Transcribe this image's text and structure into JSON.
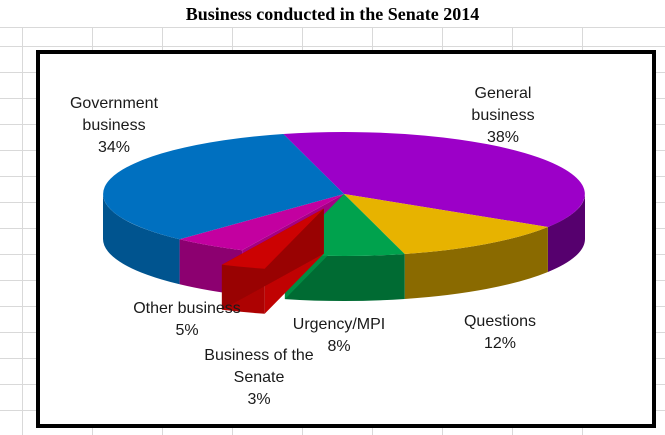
{
  "title": "Business conducted in the Senate 2014",
  "sheet": {
    "grid_color": "#D9D9D9",
    "background": "#FFFFFF",
    "frame_border_color": "#000000"
  },
  "chart_data": {
    "type": "pie",
    "style": "3d-pie-one-slice-exploded",
    "title": "Business conducted in the Senate 2014",
    "unit": "%",
    "legend": "none",
    "categories": [
      "General business",
      "Questions",
      "Urgency/MPI",
      "Business of the Senate",
      "Other business",
      "Government business"
    ],
    "values": [
      38,
      12,
      8,
      3,
      5,
      34
    ],
    "slices": [
      {
        "key": "general-business",
        "label": "General business",
        "pct": 38,
        "pct_label": "38%",
        "color": "#9C00C8",
        "side": "#56006E",
        "exploded": false
      },
      {
        "key": "questions",
        "label": "Questions",
        "pct": 12,
        "pct_label": "12%",
        "color": "#E7B300",
        "side": "#8A6A00",
        "exploded": false
      },
      {
        "key": "urgency-mpi",
        "label": "Urgency/MPI",
        "pct": 8,
        "pct_label": "8%",
        "color": "#00A24D",
        "side": "#006B33",
        "radial": "#008C42",
        "exploded": false
      },
      {
        "key": "business-of-the-senate",
        "label": "Business of the Senate",
        "pct": 3,
        "pct_label": "3%",
        "color": "#CC0202",
        "side": "#AD0202",
        "face_left": "#990202",
        "face_right": "#C00202",
        "exploded": true
      },
      {
        "key": "other-business",
        "label": "Other business",
        "pct": 5,
        "pct_label": "5%",
        "color": "#C300A0",
        "side": "#8C0070",
        "radial": "#A50085",
        "exploded": false
      },
      {
        "key": "government-business",
        "label": "Government business",
        "pct": 34,
        "pct_label": "34%",
        "color": "#0070C0",
        "side": "#00548F",
        "exploded": false
      }
    ]
  }
}
